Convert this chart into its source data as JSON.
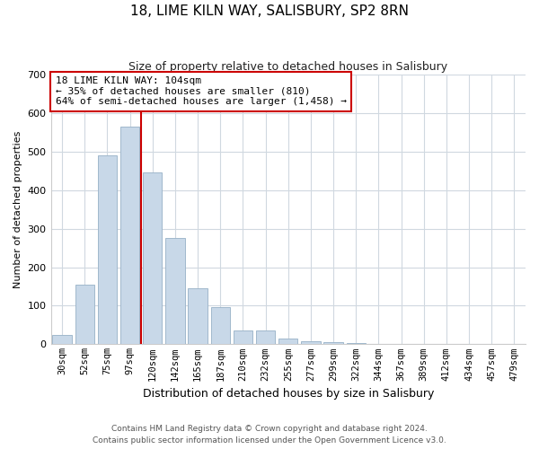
{
  "title": "18, LIME KILN WAY, SALISBURY, SP2 8RN",
  "subtitle": "Size of property relative to detached houses in Salisbury",
  "xlabel": "Distribution of detached houses by size in Salisbury",
  "ylabel": "Number of detached properties",
  "footnote1": "Contains HM Land Registry data © Crown copyright and database right 2024.",
  "footnote2": "Contains public sector information licensed under the Open Government Licence v3.0.",
  "bar_labels": [
    "30sqm",
    "52sqm",
    "75sqm",
    "97sqm",
    "120sqm",
    "142sqm",
    "165sqm",
    "187sqm",
    "210sqm",
    "232sqm",
    "255sqm",
    "277sqm",
    "299sqm",
    "322sqm",
    "344sqm",
    "367sqm",
    "389sqm",
    "412sqm",
    "434sqm",
    "457sqm",
    "479sqm"
  ],
  "bar_values": [
    25,
    155,
    490,
    565,
    445,
    275,
    145,
    97,
    37,
    37,
    15,
    8,
    5,
    3,
    2,
    1,
    0,
    0,
    0,
    0,
    2
  ],
  "bar_color": "#c8d8e8",
  "bar_edge_color": "#a0b8cc",
  "marker_index": 3,
  "marker_line_color": "#cc0000",
  "annotation_text1": "18 LIME KILN WAY: 104sqm",
  "annotation_text2": "← 35% of detached houses are smaller (810)",
  "annotation_text3": "64% of semi-detached houses are larger (1,458) →",
  "annotation_box_color": "#ffffff",
  "annotation_box_edge": "#cc0000",
  "ylim": [
    0,
    700
  ],
  "yticks": [
    0,
    100,
    200,
    300,
    400,
    500,
    600,
    700
  ],
  "bg_color": "#ffffff",
  "grid_color": "#d0d8e0"
}
